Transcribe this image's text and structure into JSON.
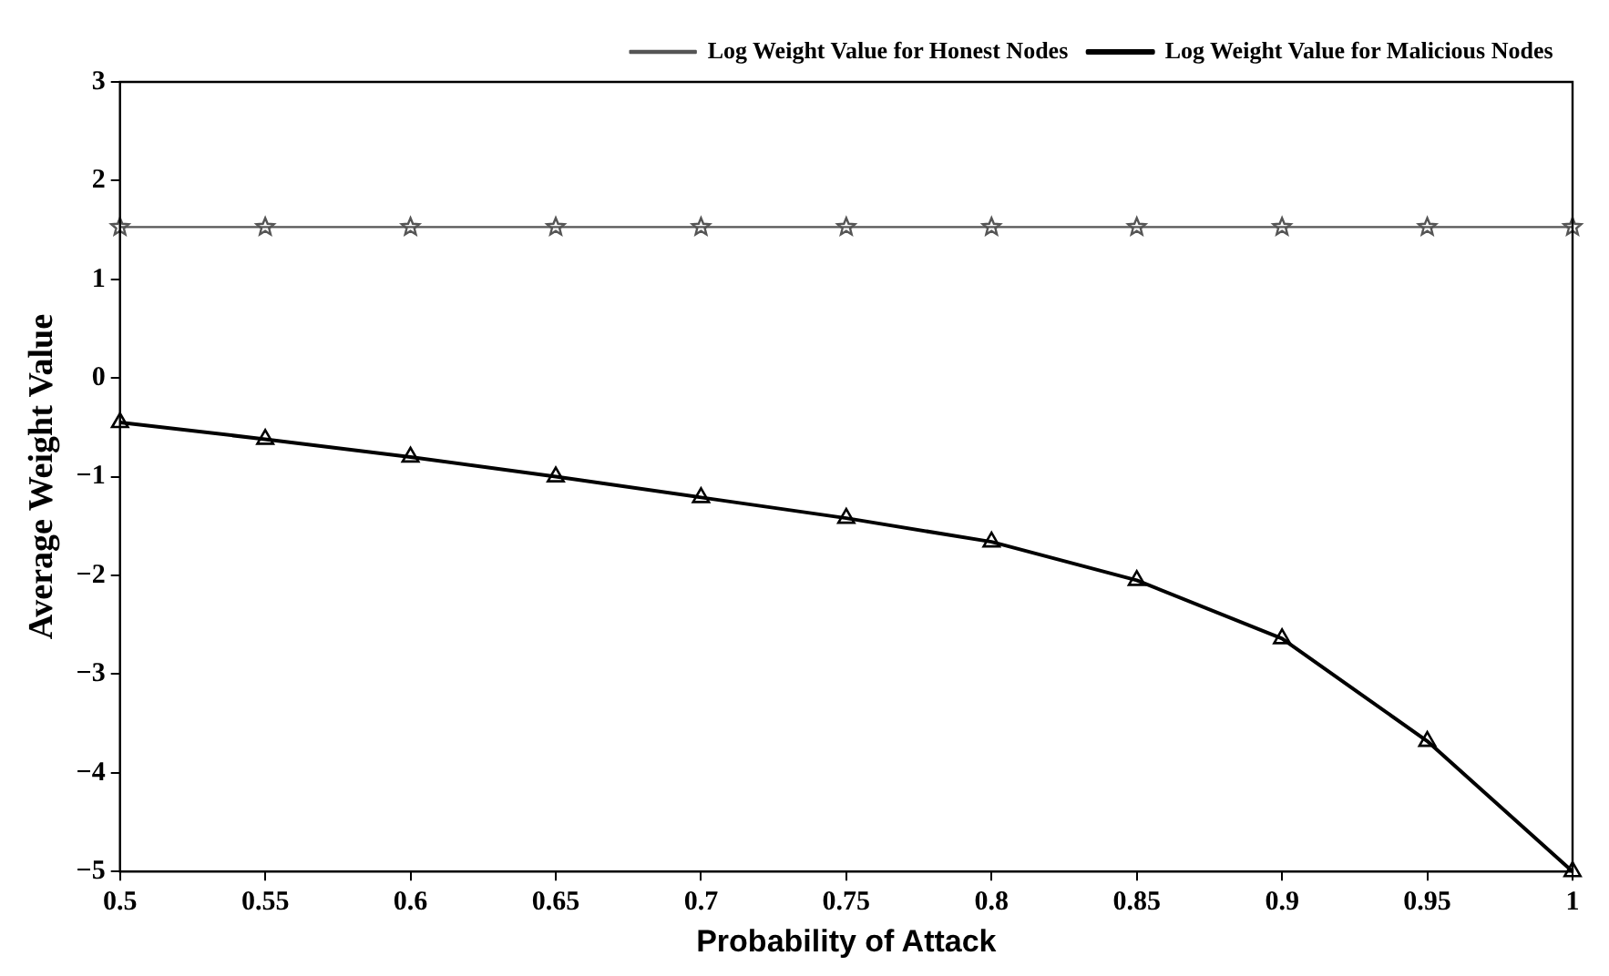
{
  "chart_data": {
    "type": "line",
    "xlabel": "Probability of Attack",
    "ylabel": "Average Weight Value",
    "x": [
      0.5,
      0.55,
      0.6,
      0.65,
      0.7,
      0.75,
      0.8,
      0.85,
      0.9,
      0.95,
      1
    ],
    "series": [
      {
        "name": "Log Weight Value for Malicious Nodes",
        "color": "#000000",
        "marker": "triangle",
        "values": [
          -0.45,
          -0.62,
          -0.8,
          -1.0,
          -1.21,
          -1.42,
          -1.66,
          -2.05,
          -2.64,
          -3.68,
          -5
        ]
      },
      {
        "name": "Log Weight Value for Honest Nodes",
        "color": "#555555",
        "marker": "star",
        "values": [
          1.53,
          1.53,
          1.53,
          1.53,
          1.53,
          1.53,
          1.53,
          1.53,
          1.53,
          1.53,
          1.53
        ]
      }
    ],
    "xlim": [
      0.5,
      1
    ],
    "xticks": [
      0.5,
      0.55,
      0.6,
      0.65,
      0.7,
      0.75,
      0.8,
      0.85,
      0.9,
      0.95,
      1
    ],
    "ylim": [
      -5,
      3
    ],
    "yticks": [
      -5,
      -4,
      -3,
      -2,
      -1,
      0,
      1,
      2,
      3
    ],
    "grid": false,
    "legend": "top right",
    "line_style": "solid"
  }
}
